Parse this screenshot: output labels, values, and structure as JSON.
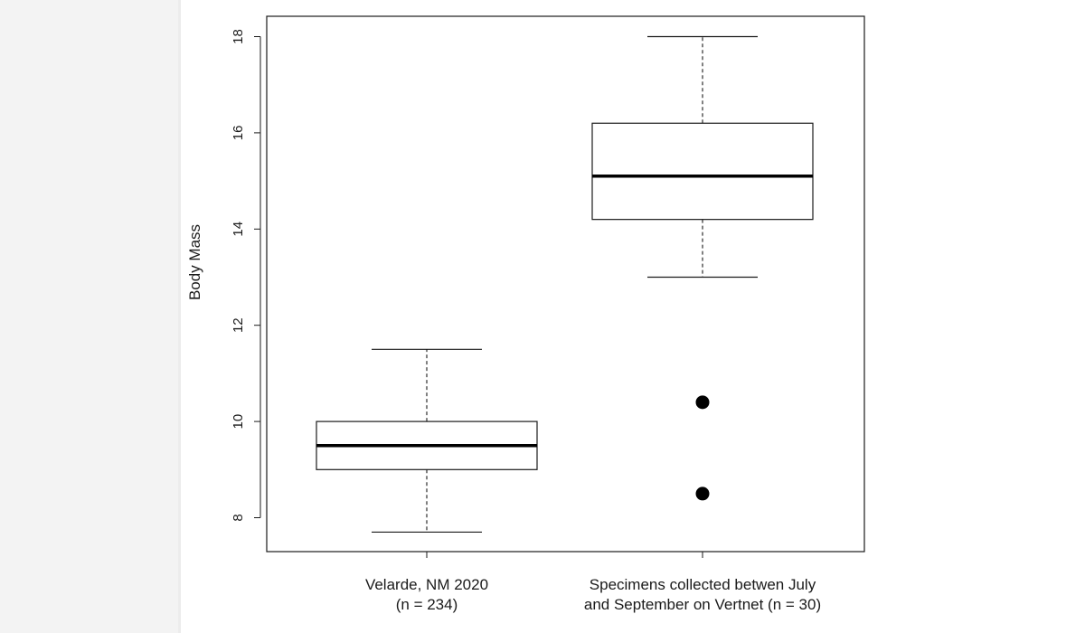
{
  "chart_data": {
    "type": "box",
    "title": "",
    "xlabel": "",
    "ylabel": "Body Mass",
    "ylim": [
      7.3,
      18.4
    ],
    "yticks": [
      8,
      10,
      12,
      14,
      16,
      18
    ],
    "grid": false,
    "groups": [
      {
        "label_line1": "Velarde, NM 2020",
        "label_line2": "(n = 234)",
        "whisker_low": 7.7,
        "q1": 9.0,
        "median": 9.5,
        "q3": 10.0,
        "whisker_high": 11.5,
        "outliers": []
      },
      {
        "label_line1": "Specimens collected betwen July",
        "label_line2": "and September on Vertnet (n = 30)",
        "whisker_low": 13.0,
        "q1": 14.2,
        "median": 15.1,
        "q3": 16.2,
        "whisker_high": 18.0,
        "outliers": [
          10.4,
          8.5
        ]
      }
    ]
  }
}
